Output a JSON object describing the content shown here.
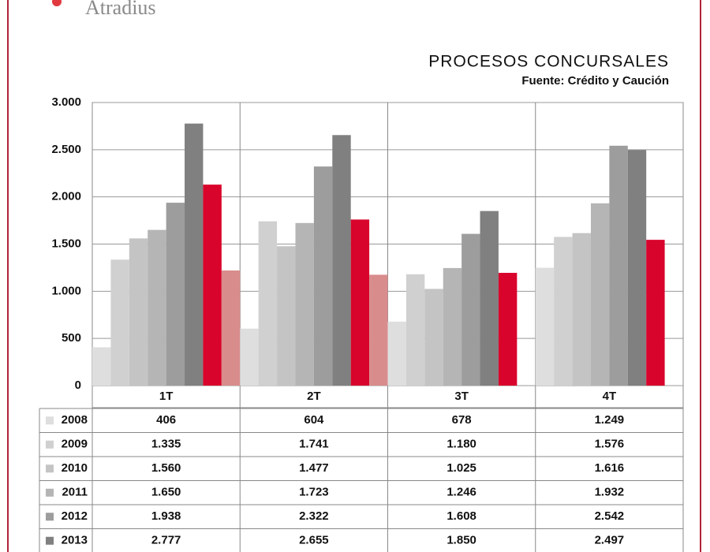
{
  "logo": "Atradius",
  "chart_data": {
    "type": "bar",
    "title": "PROCESOS CONCURSALES",
    "subtitle": "Fuente: Crédito y Caución",
    "categories": [
      "1T",
      "2T",
      "3T",
      "4T"
    ],
    "series": [
      {
        "name": "2008",
        "color": "#dedede",
        "values": [
          406,
          604,
          678,
          1249
        ],
        "value_labels": [
          "406",
          "604",
          "678",
          "1.249"
        ]
      },
      {
        "name": "2009",
        "color": "#d0d0d0",
        "values": [
          1335,
          1741,
          1180,
          1576
        ],
        "value_labels": [
          "1.335",
          "1.741",
          "1.180",
          "1.576"
        ]
      },
      {
        "name": "2010",
        "color": "#c4c4c4",
        "values": [
          1560,
          1477,
          1025,
          1616
        ],
        "value_labels": [
          "1.560",
          "1.477",
          "1.025",
          "1.616"
        ]
      },
      {
        "name": "2011",
        "color": "#b5b5b5",
        "values": [
          1650,
          1723,
          1246,
          1932
        ],
        "value_labels": [
          "1.650",
          "1.723",
          "1.246",
          "1.932"
        ]
      },
      {
        "name": "2012",
        "color": "#9d9d9d",
        "values": [
          1938,
          2322,
          1608,
          2542
        ],
        "value_labels": [
          "1.938",
          "2.322",
          "1.608",
          "2.542"
        ]
      },
      {
        "name": "2013",
        "color": "#808080",
        "values": [
          2777,
          2655,
          1850,
          2497
        ],
        "value_labels": [
          "2.777",
          "2.655",
          "1.850",
          "2.497"
        ]
      },
      {
        "color": "#d9042b",
        "values": [
          2130,
          1760,
          1195,
          1545
        ]
      },
      {
        "color": "#d98c8c",
        "values": [
          1220,
          1175,
          null,
          null
        ]
      }
    ],
    "ylim": [
      0,
      3000
    ],
    "yticks": [
      0,
      500,
      {
        "value": 1000,
        "label": "1.000"
      },
      {
        "value": 1500,
        "label": "1.500"
      },
      {
        "value": 2000,
        "label": "2.000"
      },
      {
        "value": 2500,
        "label": "2.500"
      },
      {
        "value": 3000,
        "label": "3.000"
      }
    ],
    "grid": true
  }
}
